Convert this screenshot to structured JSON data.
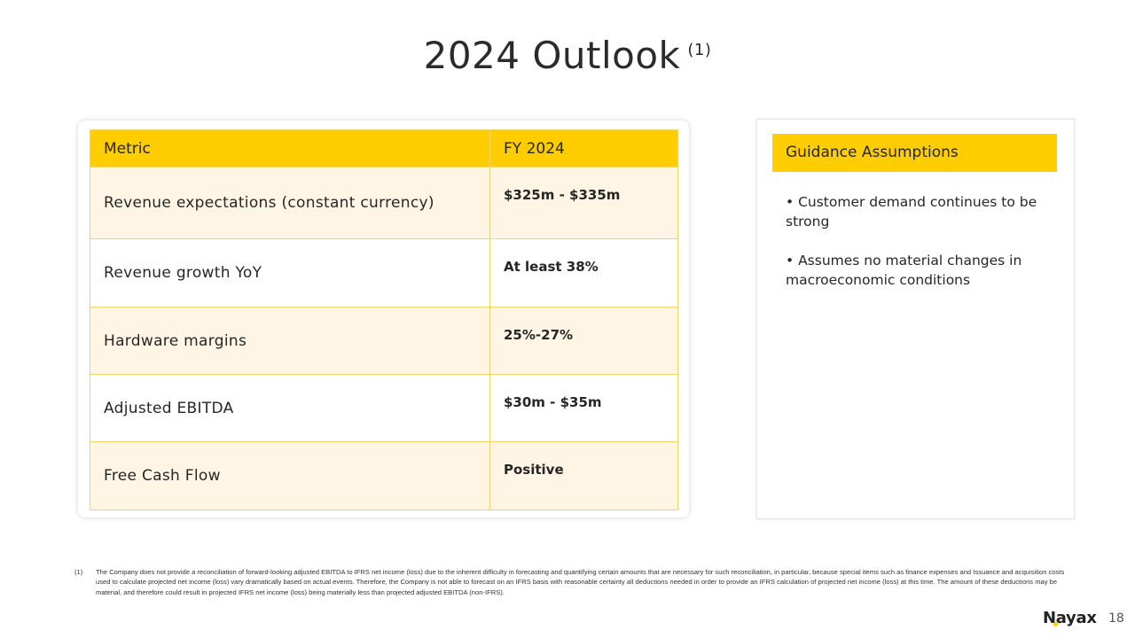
{
  "slide": {
    "title": "2024 Outlook",
    "title_footnote_ref": "(1)",
    "page_number": "18",
    "logo_text": "Nayax"
  },
  "table": {
    "headers": [
      "Metric",
      "FY 2024"
    ],
    "rows": [
      {
        "metric": "Revenue expectations (constant currency)",
        "value": "$325m - $335m"
      },
      {
        "metric": "Revenue growth YoY",
        "value": "At least 38%"
      },
      {
        "metric": "Hardware margins",
        "value": "25%-27%"
      },
      {
        "metric": "Adjusted EBITDA",
        "value": "$30m - $35m"
      },
      {
        "metric": "Free Cash Flow",
        "value": "Positive"
      }
    ]
  },
  "assumptions": {
    "header": "Guidance Assumptions",
    "items": [
      "• Customer demand continues to be strong",
      "• Assumes no material changes in macroeconomic conditions"
    ]
  },
  "footnote": {
    "number": "(1)",
    "text": "The Company does not provide a reconciliation of forward-looking adjusted EBITDA to IFRS net income (loss) due to the inherent difficulty in forecasting and quantifying certain amounts that are necessary for such reconciliation, in particular, because special items such as finance expenses and Issuance and acquisition costs used to calculate projected net income (loss) vary dramatically based on actual events.  Therefore, the Company is not able to forecast on an IFRS basis with reasonable certainty all deductions needed in order to provide an IFRS calculation of projected net income (loss) at this time. The amount of these deductions may be material, and therefore could result in projected IFRS net income (loss) being materially less than projected adjusted EBITDA (non-IFRS)."
  },
  "colors": {
    "accent": "#ffcd00",
    "row_tint": "#fff5e5",
    "border": "#f2d566"
  }
}
